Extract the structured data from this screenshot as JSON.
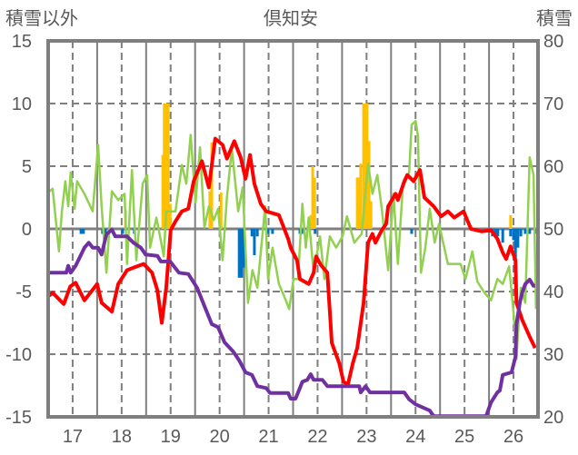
{
  "chart_data": {
    "type": "line",
    "title": "倶知安",
    "ylabel_left": "積雪以外",
    "ylabel_right": "積雪",
    "xlim": [
      16.5,
      26.5
    ],
    "ylim_left": [
      -15,
      15
    ],
    "ylim_right": [
      20,
      80
    ],
    "x_ticks": [
      "17",
      "18",
      "19",
      "20",
      "21",
      "22",
      "23",
      "24",
      "25",
      "26"
    ],
    "y_ticks_left": [
      "15",
      "10",
      "5",
      "0",
      "-5",
      "-10",
      "-15"
    ],
    "y_ticks_right": [
      "80",
      "70",
      "60",
      "50",
      "40",
      "30",
      "20"
    ],
    "grid": true,
    "colors": {
      "red": "#ff0000",
      "green": "#92d050",
      "purple": "#7030a0",
      "snowfall": "#ffc000",
      "decrease": "#0070c0",
      "axis": "#7f7f7f",
      "text": "#595959"
    },
    "series": [
      {
        "name": "red-line",
        "axis": "left",
        "points": [
          [
            16.5,
            -5.4
          ],
          [
            16.59,
            -5.1
          ],
          [
            16.82,
            -6.0
          ],
          [
            16.95,
            -4.6
          ],
          [
            17.06,
            -4.3
          ],
          [
            17.24,
            -5.7
          ],
          [
            17.5,
            -4.4
          ],
          [
            17.59,
            -5.9
          ],
          [
            17.8,
            -6.6
          ],
          [
            17.93,
            -4.4
          ],
          [
            18.11,
            -3.3
          ],
          [
            18.24,
            -3.1
          ],
          [
            18.45,
            -2.8
          ],
          [
            18.62,
            -3.5
          ],
          [
            18.73,
            -4.9
          ],
          [
            18.82,
            -7.5
          ],
          [
            18.91,
            -4.7
          ],
          [
            19.0,
            -0.1
          ],
          [
            19.1,
            0.6
          ],
          [
            19.23,
            1.4
          ],
          [
            19.36,
            1.6
          ],
          [
            19.47,
            3.8
          ],
          [
            19.64,
            5.4
          ],
          [
            19.78,
            3.3
          ],
          [
            19.91,
            7.2
          ],
          [
            20.06,
            6.7
          ],
          [
            20.15,
            5.6
          ],
          [
            20.3,
            7.0
          ],
          [
            20.43,
            5.7
          ],
          [
            20.53,
            4.0
          ],
          [
            20.62,
            5.9
          ],
          [
            20.71,
            3.6
          ],
          [
            20.84,
            2.0
          ],
          [
            20.95,
            1.4
          ],
          [
            21.21,
            1.1
          ],
          [
            21.4,
            -0.8
          ],
          [
            21.45,
            -1.5
          ],
          [
            21.58,
            -2.5
          ],
          [
            21.64,
            -4.0
          ],
          [
            21.82,
            -4.4
          ],
          [
            21.92,
            -3.5
          ],
          [
            21.97,
            -2.2
          ],
          [
            22.07,
            -2.9
          ],
          [
            22.2,
            -3.5
          ],
          [
            22.29,
            -9.1
          ],
          [
            22.44,
            -10.7
          ],
          [
            22.53,
            -12.2
          ],
          [
            22.62,
            -12.4
          ],
          [
            22.72,
            -10.7
          ],
          [
            22.81,
            -9.5
          ],
          [
            22.94,
            -5.9
          ],
          [
            23.03,
            -1.1
          ],
          [
            23.12,
            -0.4
          ],
          [
            23.18,
            -1.1
          ],
          [
            23.31,
            -0.1
          ],
          [
            23.4,
            0.4
          ],
          [
            23.44,
            1.8
          ],
          [
            23.59,
            2.8
          ],
          [
            23.64,
            2.3
          ],
          [
            23.77,
            3.8
          ],
          [
            23.83,
            4.3
          ],
          [
            23.96,
            3.8
          ],
          [
            24.09,
            4.7
          ],
          [
            24.18,
            2.5
          ],
          [
            24.37,
            1.8
          ],
          [
            24.52,
            1.0
          ],
          [
            24.66,
            1.4
          ],
          [
            24.79,
            0.9
          ],
          [
            24.98,
            1.4
          ],
          [
            25.13,
            0.0
          ],
          [
            25.35,
            -0.2
          ],
          [
            25.54,
            -0.1
          ],
          [
            25.67,
            -0.8
          ],
          [
            25.78,
            -1.9
          ],
          [
            25.85,
            -2.4
          ],
          [
            25.94,
            -1.4
          ],
          [
            26.04,
            -2.5
          ],
          [
            26.06,
            -5.9
          ],
          [
            26.18,
            -7.3
          ],
          [
            26.33,
            -8.6
          ],
          [
            26.44,
            -9.5
          ]
        ]
      },
      {
        "name": "green-line",
        "axis": "left",
        "points": [
          [
            16.5,
            2.9
          ],
          [
            16.59,
            3.2
          ],
          [
            16.72,
            -1.8
          ],
          [
            16.78,
            1.4
          ],
          [
            16.85,
            3.8
          ],
          [
            16.91,
            1.8
          ],
          [
            16.96,
            4.5
          ],
          [
            17.04,
            1.6
          ],
          [
            17.09,
            3.8
          ],
          [
            17.24,
            2.8
          ],
          [
            17.41,
            1.4
          ],
          [
            17.52,
            6.7
          ],
          [
            17.59,
            1.8
          ],
          [
            17.69,
            -3.5
          ],
          [
            17.8,
            3.0
          ],
          [
            17.93,
            2.3
          ],
          [
            18.06,
            2.8
          ],
          [
            18.11,
            -2.8
          ],
          [
            18.21,
            4.7
          ],
          [
            18.3,
            -2.5
          ],
          [
            18.43,
            3.6
          ],
          [
            18.52,
            4.3
          ],
          [
            18.58,
            -1.5
          ],
          [
            18.71,
            0.9
          ],
          [
            18.76,
            -0.1
          ],
          [
            18.86,
            -2.2
          ],
          [
            18.91,
            1.4
          ],
          [
            19.1,
            1.4
          ],
          [
            19.23,
            5.1
          ],
          [
            19.32,
            3.6
          ],
          [
            19.41,
            7.5
          ],
          [
            19.51,
            2.1
          ],
          [
            19.6,
            6.5
          ],
          [
            19.69,
            0.1
          ],
          [
            19.78,
            1.8
          ],
          [
            19.88,
            0.7
          ],
          [
            19.97,
            1.6
          ],
          [
            20.06,
            -2.5
          ],
          [
            20.15,
            2.5
          ],
          [
            20.25,
            6.4
          ],
          [
            20.38,
            1.4
          ],
          [
            20.47,
            3.3
          ],
          [
            20.58,
            -5.9
          ],
          [
            20.67,
            -3.3
          ],
          [
            20.77,
            -4.7
          ],
          [
            20.93,
            1.8
          ],
          [
            20.99,
            -4.0
          ],
          [
            21.08,
            -1.5
          ],
          [
            21.21,
            -4.4
          ],
          [
            21.32,
            -5.4
          ],
          [
            21.42,
            -6.4
          ],
          [
            21.51,
            -4.0
          ],
          [
            21.6,
            -4.0
          ],
          [
            21.69,
            2.0
          ],
          [
            21.76,
            -1.5
          ],
          [
            21.82,
            0.9
          ],
          [
            21.92,
            -3.5
          ],
          [
            22.05,
            -0.6
          ],
          [
            22.14,
            -4.0
          ],
          [
            22.25,
            -0.6
          ],
          [
            22.38,
            -1.5
          ],
          [
            22.51,
            -0.6
          ],
          [
            22.6,
            1.0
          ],
          [
            22.75,
            -1.1
          ],
          [
            22.9,
            -0.4
          ],
          [
            23.03,
            5.2
          ],
          [
            23.12,
            2.8
          ],
          [
            23.22,
            4.3
          ],
          [
            23.31,
            1.6
          ],
          [
            23.44,
            -3.3
          ],
          [
            23.55,
            2.8
          ],
          [
            23.64,
            -2.8
          ],
          [
            23.74,
            3.3
          ],
          [
            23.87,
            4.5
          ],
          [
            23.92,
            8.3
          ],
          [
            24.0,
            8.6
          ],
          [
            24.05,
            7.4
          ],
          [
            24.11,
            -3.5
          ],
          [
            24.2,
            -1.5
          ],
          [
            24.29,
            1.6
          ],
          [
            24.39,
            -1.1
          ],
          [
            24.48,
            0.4
          ],
          [
            24.66,
            -2.8
          ],
          [
            24.92,
            -2.8
          ],
          [
            25.02,
            -4.0
          ],
          [
            25.16,
            -1.8
          ],
          [
            25.26,
            -4.2
          ],
          [
            25.41,
            -5.1
          ],
          [
            25.54,
            -5.7
          ],
          [
            25.67,
            -4.0
          ],
          [
            25.78,
            -4.4
          ],
          [
            25.91,
            -3.0
          ],
          [
            26.0,
            -6.6
          ],
          [
            26.06,
            -10.4
          ],
          [
            26.15,
            -4.7
          ],
          [
            26.24,
            -5.9
          ],
          [
            26.33,
            5.7
          ],
          [
            26.41,
            4.3
          ],
          [
            26.46,
            -6.4
          ]
        ]
      },
      {
        "name": "purple-line-snow-depth",
        "axis": "right",
        "points": [
          [
            16.5,
            43.0
          ],
          [
            16.87,
            43.0
          ],
          [
            16.91,
            44.1
          ],
          [
            16.96,
            43.0
          ],
          [
            17.06,
            44.1
          ],
          [
            17.24,
            47.0
          ],
          [
            17.33,
            47.8
          ],
          [
            17.41,
            47.0
          ],
          [
            17.52,
            47.0
          ],
          [
            17.59,
            45.9
          ],
          [
            17.69,
            49.1
          ],
          [
            17.8,
            49.9
          ],
          [
            17.87,
            48.8
          ],
          [
            18.11,
            48.8
          ],
          [
            18.24,
            47.8
          ],
          [
            18.39,
            47.0
          ],
          [
            18.49,
            45.9
          ],
          [
            18.73,
            45.7
          ],
          [
            18.8,
            44.8
          ],
          [
            18.99,
            44.8
          ],
          [
            19.17,
            43.0
          ],
          [
            19.36,
            42.8
          ],
          [
            19.54,
            40.6
          ],
          [
            19.69,
            37.7
          ],
          [
            19.84,
            34.8
          ],
          [
            19.97,
            34.3
          ],
          [
            20.1,
            31.9
          ],
          [
            20.28,
            30.4
          ],
          [
            20.4,
            29.0
          ],
          [
            20.53,
            27.1
          ],
          [
            20.66,
            26.7
          ],
          [
            20.77,
            24.9
          ],
          [
            20.95,
            24.6
          ],
          [
            21.03,
            23.8
          ],
          [
            21.4,
            23.8
          ],
          [
            21.45,
            22.9
          ],
          [
            21.55,
            22.9
          ],
          [
            21.64,
            24.6
          ],
          [
            21.69,
            25.6
          ],
          [
            21.79,
            25.9
          ],
          [
            21.86,
            26.8
          ],
          [
            21.92,
            25.9
          ],
          [
            22.1,
            25.9
          ],
          [
            22.2,
            24.9
          ],
          [
            22.85,
            24.9
          ],
          [
            22.88,
            23.9
          ],
          [
            22.98,
            24.9
          ],
          [
            23.07,
            23.9
          ],
          [
            23.77,
            23.9
          ],
          [
            23.87,
            22.8
          ],
          [
            24.0,
            22.0
          ],
          [
            24.29,
            21.0
          ],
          [
            24.37,
            20.1
          ],
          [
            25.44,
            20.1
          ],
          [
            25.54,
            22.3
          ],
          [
            25.67,
            23.9
          ],
          [
            25.72,
            24.2
          ],
          [
            25.78,
            26.7
          ],
          [
            25.96,
            27.1
          ],
          [
            26.04,
            29.6
          ],
          [
            26.06,
            34.8
          ],
          [
            26.13,
            38.3
          ],
          [
            26.18,
            39.9
          ],
          [
            26.24,
            41.2
          ],
          [
            26.33,
            41.9
          ],
          [
            26.41,
            40.9
          ],
          [
            26.44,
            40.9
          ]
        ]
      }
    ],
    "bars": [
      {
        "name": "snowfall-bars",
        "axis": "left",
        "color_key": "snowfall",
        "points": [
          [
            18.08,
            1.5
          ],
          [
            18.84,
            5.9
          ],
          [
            18.87,
            10
          ],
          [
            18.91,
            10
          ],
          [
            18.95,
            10
          ],
          [
            18.99,
            2.0
          ],
          [
            19.8,
            3.0
          ],
          [
            19.84,
            6.9
          ],
          [
            20.03,
            2.9
          ],
          [
            21.86,
            1.1
          ],
          [
            21.9,
            5.0
          ],
          [
            21.94,
            4.1
          ],
          [
            22.81,
            4.1
          ],
          [
            22.85,
            4.1
          ],
          [
            22.88,
            5.2
          ],
          [
            22.94,
            10
          ],
          [
            22.98,
            10
          ],
          [
            23.01,
            10
          ],
          [
            23.05,
            7.0
          ],
          [
            23.09,
            2.2
          ],
          [
            25.94,
            1.1
          ]
        ]
      },
      {
        "name": "decrease-bars",
        "axis": "left",
        "color_key": "decrease",
        "points": [
          [
            17.17,
            -0.4
          ],
          [
            17.22,
            -0.4
          ],
          [
            17.61,
            -0.4
          ],
          [
            17.67,
            -0.4
          ],
          [
            18.02,
            -0.4
          ],
          [
            18.26,
            -0.4
          ],
          [
            20.4,
            -3.9
          ],
          [
            20.45,
            -3.9
          ],
          [
            20.49,
            -3.1
          ],
          [
            20.66,
            -0.6
          ],
          [
            20.71,
            -2.1
          ],
          [
            20.77,
            -0.6
          ],
          [
            20.99,
            -0.4
          ],
          [
            21.08,
            -0.4
          ],
          [
            21.64,
            -0.4
          ],
          [
            21.68,
            -0.4
          ],
          [
            21.95,
            -0.4
          ],
          [
            23.92,
            -0.4
          ],
          [
            25.57,
            -0.6
          ],
          [
            25.63,
            -0.6
          ],
          [
            25.68,
            -0.6
          ],
          [
            25.78,
            -1.1
          ],
          [
            25.94,
            -0.6
          ],
          [
            26.0,
            -0.9
          ],
          [
            26.04,
            -3.0
          ],
          [
            26.09,
            -1.5
          ],
          [
            26.15,
            -0.6
          ],
          [
            26.24,
            -0.4
          ],
          [
            26.33,
            -0.4
          ],
          [
            26.44,
            -0.4
          ]
        ]
      }
    ]
  }
}
